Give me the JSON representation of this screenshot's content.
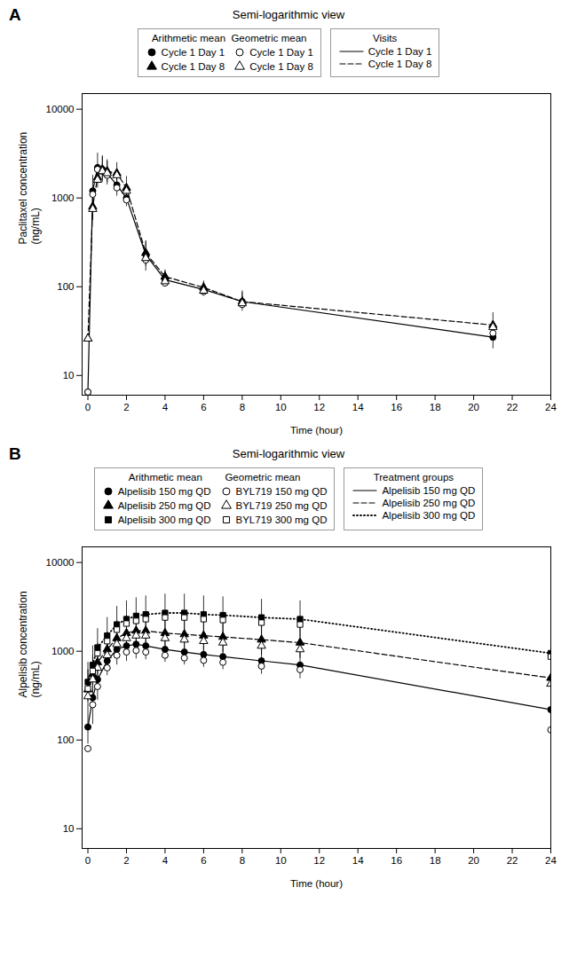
{
  "chart_data": [
    {
      "type": "line",
      "annotation": "A",
      "title": "Semi-logarithmic view",
      "xlabel": "Time (hour)",
      "ylabel": "Paclitaxel concentration\n(ng/mL)",
      "log": "y",
      "grid": false,
      "xlim": [
        -0.3,
        24
      ],
      "xticks": [
        0,
        2,
        4,
        6,
        8,
        10,
        12,
        14,
        16,
        18,
        20,
        22,
        24
      ],
      "ylim": [
        6,
        15000
      ],
      "yticks": [
        10,
        100,
        1000,
        10000
      ],
      "legend_titles": [
        "Arithmetic mean  Geometric mean",
        "Visits"
      ],
      "series": [
        {
          "name": "Cycle 1 Day 1",
          "type": "scatter",
          "marker": "circle",
          "x": [
            0,
            0.25,
            0.5,
            0.75,
            1.0,
            1.5,
            2.0,
            3.0,
            4.0,
            6.0,
            8.0,
            21.0
          ],
          "values": [
            6.5,
            1200,
            2200,
            2100,
            1900,
            1400,
            1000,
            230,
            120,
            93,
            68,
            27
          ],
          "err_low": [
            0,
            400,
            700,
            600,
            500,
            350,
            200,
            80,
            20,
            15,
            15,
            7
          ],
          "err_high": [
            0,
            600,
            1000,
            900,
            700,
            500,
            350,
            100,
            30,
            20,
            22,
            8
          ]
        },
        {
          "name": "Cycle 1 Day 8",
          "type": "scatter",
          "marker": "triangle",
          "x": [
            0,
            0.25,
            0.5,
            0.75,
            1.0,
            1.5,
            2.0,
            3.0,
            4.0,
            6.0,
            8.0,
            21.0
          ],
          "values": [
            26,
            800,
            1700,
            2100,
            2000,
            1900,
            1300,
            240,
            130,
            98,
            68,
            37
          ],
          "err_low": [
            0,
            250,
            400,
            500,
            500,
            400,
            300,
            70,
            20,
            12,
            10,
            10
          ],
          "err_high": [
            0,
            400,
            700,
            800,
            700,
            600,
            450,
            80,
            25,
            18,
            18,
            14
          ]
        },
        {
          "name": "Cycle 1 Day 1",
          "type": "scatter",
          "marker": "circle-open",
          "x": [
            0,
            0.25,
            0.5,
            0.75,
            1.0,
            1.5,
            2.0,
            3.0,
            4.0,
            6.0,
            8.0,
            21.0
          ],
          "values": [
            6.5,
            1100,
            2100,
            2000,
            1800,
            1300,
            950,
            200,
            110,
            88,
            63,
            30
          ]
        },
        {
          "name": "Cycle 1 Day 8",
          "type": "scatter",
          "marker": "triangle-open",
          "x": [
            0,
            0.25,
            0.5,
            0.75,
            1.0,
            1.5,
            2.0,
            3.0,
            4.0,
            6.0,
            8.0,
            21.0
          ],
          "values": [
            26,
            750,
            1600,
            2000,
            1900,
            1800,
            1200,
            210,
            115,
            90,
            65,
            35
          ]
        },
        {
          "name": "Cycle 1 Day 1",
          "type": "line",
          "line_style": "solid",
          "x": [
            0,
            0.25,
            0.5,
            0.75,
            1.0,
            1.5,
            2.0,
            3.0,
            4.0,
            6.0,
            8.0,
            21.0
          ],
          "values": [
            6.5,
            1200,
            2200,
            2100,
            1900,
            1400,
            1000,
            230,
            120,
            93,
            68,
            27
          ]
        },
        {
          "name": "Cycle 1 Day 8",
          "type": "line",
          "line_style": "dashed",
          "x": [
            0,
            0.25,
            0.5,
            0.75,
            1.0,
            1.5,
            2.0,
            3.0,
            4.0,
            6.0,
            8.0,
            21.0
          ],
          "values": [
            26,
            800,
            1700,
            2100,
            2000,
            1900,
            1300,
            240,
            130,
            98,
            68,
            37
          ]
        }
      ]
    },
    {
      "type": "line",
      "annotation": "B",
      "title": "Semi-logarithmic view",
      "xlabel": "Time (hour)",
      "ylabel": "Alpelisib concentration\n(ng/mL)",
      "log": "y",
      "grid": false,
      "xlim": [
        -0.3,
        24
      ],
      "xticks": [
        0,
        2,
        4,
        6,
        8,
        10,
        12,
        14,
        16,
        18,
        20,
        22,
        24
      ],
      "ylim": [
        6,
        15000
      ],
      "yticks": [
        10,
        100,
        1000,
        10000
      ],
      "legend_titles": [
        "Arithmetic mean        Geometric mean",
        "Treatment groups"
      ],
      "series": [
        {
          "name": "Alpelisib 150 mg QD",
          "type": "scatter",
          "marker": "circle",
          "x": [
            0,
            0.25,
            0.5,
            1.0,
            1.5,
            2.0,
            2.5,
            3.0,
            4.0,
            5.0,
            6.0,
            7.0,
            9.0,
            11.0,
            24.0
          ],
          "values": [
            140,
            300,
            480,
            780,
            1050,
            1150,
            1200,
            1150,
            1050,
            980,
            920,
            870,
            780,
            700,
            220
          ],
          "err_low": [
            50,
            150,
            200,
            250,
            350,
            380,
            380,
            350,
            300,
            280,
            260,
            250,
            230,
            210,
            100
          ],
          "err_high": [
            80,
            250,
            350,
            450,
            550,
            600,
            600,
            550,
            480,
            450,
            420,
            400,
            370,
            350,
            700
          ]
        },
        {
          "name": "Alpelisib 250 mg QD",
          "type": "scatter",
          "marker": "triangle",
          "x": [
            0,
            0.25,
            0.5,
            1.0,
            1.5,
            2.0,
            2.5,
            3.0,
            4.0,
            5.0,
            6.0,
            7.0,
            9.0,
            11.0,
            24.0
          ],
          "values": [
            370,
            550,
            750,
            1050,
            1400,
            1600,
            1700,
            1700,
            1600,
            1550,
            1500,
            1450,
            1350,
            1250,
            500
          ],
          "err_low": [
            150,
            200,
            280,
            350,
            500,
            580,
            620,
            600,
            550,
            520,
            500,
            480,
            450,
            420,
            180
          ],
          "err_high": [
            250,
            350,
            480,
            600,
            800,
            900,
            950,
            950,
            880,
            850,
            820,
            800,
            750,
            700,
            350
          ]
        },
        {
          "name": "Alpelisib 300 mg QD",
          "type": "scatter",
          "marker": "square",
          "x": [
            0,
            0.25,
            0.5,
            1.0,
            1.5,
            2.0,
            2.5,
            3.0,
            4.0,
            5.0,
            6.0,
            7.0,
            9.0,
            11.0,
            24.0
          ],
          "values": [
            450,
            700,
            1100,
            1500,
            2000,
            2300,
            2500,
            2600,
            2700,
            2700,
            2600,
            2550,
            2400,
            2300,
            950
          ],
          "err_low": [
            180,
            280,
            420,
            550,
            750,
            880,
            950,
            1000,
            1050,
            1050,
            1000,
            980,
            920,
            880,
            380
          ],
          "err_high": [
            300,
            450,
            700,
            900,
            1200,
            1400,
            1500,
            1600,
            1700,
            1700,
            1600,
            1550,
            1450,
            1400,
            700
          ]
        },
        {
          "name": "BYL719 150 mg QD",
          "type": "scatter",
          "marker": "circle-open",
          "x": [
            0,
            0.25,
            0.5,
            1.0,
            1.5,
            2.0,
            2.5,
            3.0,
            4.0,
            5.0,
            6.0,
            7.0,
            9.0,
            11.0,
            24.0
          ],
          "values": [
            80,
            250,
            400,
            650,
            900,
            980,
            1020,
            980,
            900,
            840,
            790,
            750,
            680,
            620,
            130
          ]
        },
        {
          "name": "BYL719 250 mg QD",
          "type": "scatter",
          "marker": "triangle-open",
          "x": [
            0,
            0.25,
            0.5,
            1.0,
            1.5,
            2.0,
            2.5,
            3.0,
            4.0,
            5.0,
            6.0,
            7.0,
            9.0,
            11.0,
            24.0
          ],
          "values": [
            310,
            480,
            650,
            900,
            1200,
            1400,
            1500,
            1500,
            1400,
            1350,
            1300,
            1250,
            1150,
            1050,
            430
          ]
        },
        {
          "name": "BYL719 300 mg QD",
          "type": "scatter",
          "marker": "square-open",
          "x": [
            0,
            0.25,
            0.5,
            1.0,
            1.5,
            2.0,
            2.5,
            3.0,
            4.0,
            5.0,
            6.0,
            7.0,
            9.0,
            11.0,
            24.0
          ],
          "values": [
            380,
            600,
            950,
            1300,
            1750,
            2050,
            2200,
            2300,
            2400,
            2400,
            2300,
            2250,
            2100,
            2000,
            870
          ]
        },
        {
          "name": "Alpelisib 150 mg QD",
          "type": "line",
          "line_style": "solid",
          "x": [
            0,
            0.25,
            0.5,
            1.0,
            1.5,
            2.0,
            2.5,
            3.0,
            4.0,
            5.0,
            6.0,
            7.0,
            9.0,
            11.0,
            24.0
          ],
          "values": [
            140,
            300,
            480,
            780,
            1050,
            1150,
            1200,
            1150,
            1050,
            980,
            920,
            870,
            780,
            700,
            220
          ]
        },
        {
          "name": "Alpelisib 250 mg QD",
          "type": "line",
          "line_style": "dashed",
          "x": [
            0,
            0.25,
            0.5,
            1.0,
            1.5,
            2.0,
            2.5,
            3.0,
            4.0,
            5.0,
            6.0,
            7.0,
            9.0,
            11.0,
            24.0
          ],
          "values": [
            370,
            550,
            750,
            1050,
            1400,
            1600,
            1700,
            1700,
            1600,
            1550,
            1500,
            1450,
            1350,
            1250,
            500
          ]
        },
        {
          "name": "Alpelisib 300 mg QD",
          "type": "line",
          "line_style": "dotted",
          "x": [
            0,
            0.25,
            0.5,
            1.0,
            1.5,
            2.0,
            2.5,
            3.0,
            4.0,
            5.0,
            6.0,
            7.0,
            9.0,
            11.0,
            24.0
          ],
          "values": [
            450,
            700,
            1100,
            1500,
            2000,
            2300,
            2500,
            2600,
            2700,
            2700,
            2600,
            2550,
            2400,
            2300,
            950
          ]
        }
      ]
    }
  ]
}
